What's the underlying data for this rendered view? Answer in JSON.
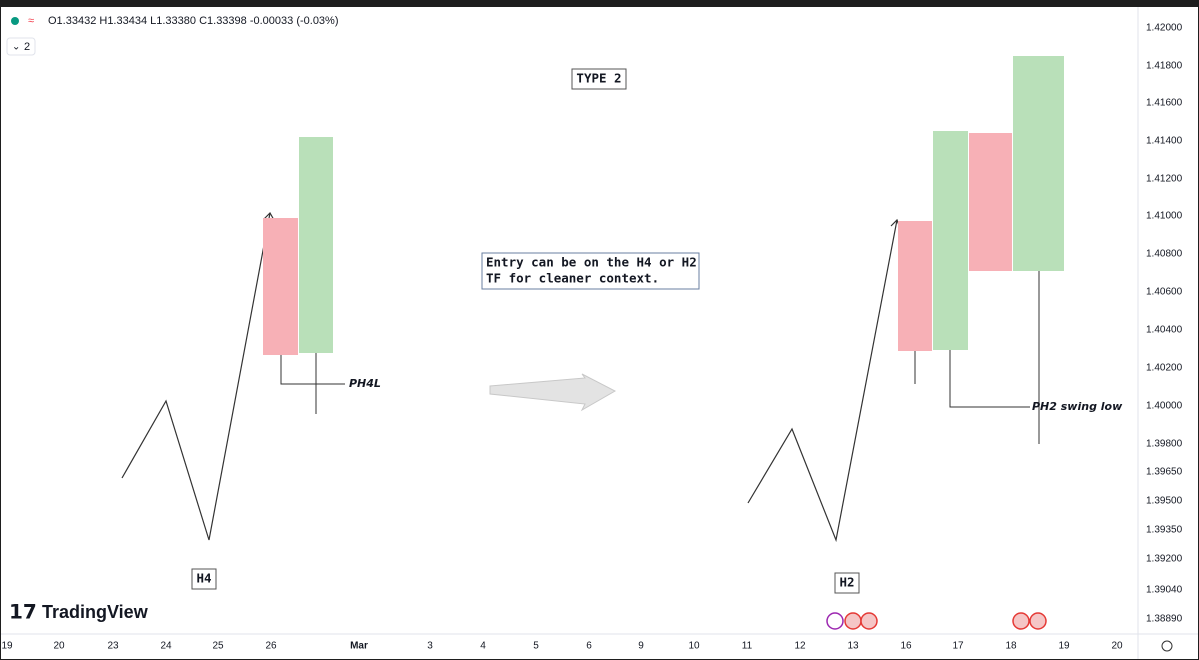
{
  "header": {
    "ohlc": "O1.33432 H1.33434 L1.33380 C1.33398 -0.00033 (-0.03%)",
    "indicator_count": "2"
  },
  "logo": "TradingView",
  "price_axis": [
    "1.42000",
    "1.41800",
    "1.41600",
    "1.41400",
    "1.41200",
    "1.41000",
    "1.40800",
    "1.40600",
    "1.40400",
    "1.40200",
    "1.40000",
    "1.39800",
    "1.39650",
    "1.39500",
    "1.39350",
    "1.39200",
    "1.39040",
    "1.38890"
  ],
  "time_axis": [
    "19",
    "20",
    "23",
    "24",
    "25",
    "26",
    "Mar",
    "3",
    "4",
    "5",
    "6",
    "9",
    "10",
    "11",
    "12",
    "13",
    "16",
    "17",
    "18",
    "19",
    "20"
  ],
  "annotations": {
    "type": "TYPE 2",
    "entry": [
      "Entry can be on the H4 or H2",
      "TF for cleaner context."
    ],
    "ph4l": "PH4L",
    "h4": "H4",
    "h2": "H2",
    "ph2": "PH2 swing low"
  }
}
